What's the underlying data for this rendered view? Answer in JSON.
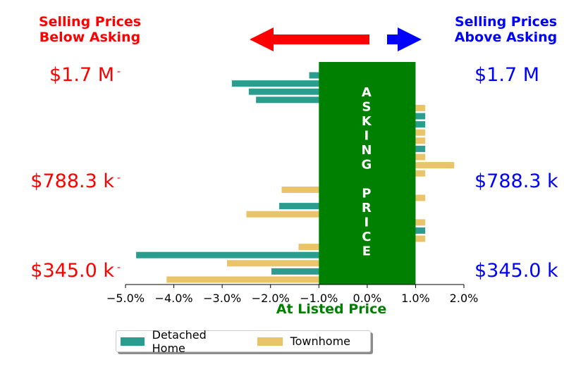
{
  "headers": {
    "below": "Selling Prices\nBelow Asking",
    "above": "Selling Prices\nAbove Asking"
  },
  "colors": {
    "below": "#ff0000",
    "above": "#0000ff",
    "asking_box": "#008000",
    "asking_text": "#ffffff",
    "detached": "#2a9d8f",
    "townhome": "#e9c46a"
  },
  "price_labels": {
    "left": [
      "$1.7 M",
      "$788.3 k",
      "$345.0 k"
    ],
    "right": [
      "$1.7 M",
      "$788.3 k",
      "$345.0 k"
    ],
    "tick_dash": "-"
  },
  "asking_label": [
    "A",
    "S",
    "K",
    "I",
    "N",
    "G",
    "",
    "P",
    "R",
    "I",
    "C",
    "E"
  ],
  "chart_data": {
    "type": "bar",
    "orientation": "horizontal",
    "xlabel": "At Listed Price",
    "xlim": [
      -5.0,
      2.0
    ],
    "xticks": [
      -5.0,
      -4.0,
      -3.0,
      -2.0,
      -1.0,
      0.0,
      1.0,
      2.0
    ],
    "xtick_labels": [
      "−5.0%",
      "−4.0%",
      "−3.0%",
      "−2.0%",
      "−1.0%",
      "0.0%",
      "1.0%",
      "2.0%"
    ],
    "asking_band": [
      -1.0,
      1.0
    ],
    "price_ticks": {
      "$1.7 M": 0,
      "$788.3 k": 13,
      "$345.0 k": 24
    },
    "legend": "bottom-center",
    "series": [
      {
        "name": "Detached Home",
        "points": [
          {
            "row": 0,
            "value": -1.2
          },
          {
            "row": 1,
            "value": -2.8
          },
          {
            "row": 2,
            "value": -2.45
          },
          {
            "row": 3,
            "value": -2.3
          },
          {
            "row": 5,
            "value": 1.2
          },
          {
            "row": 6,
            "value": 1.2
          },
          {
            "row": 9,
            "value": 1.2
          },
          {
            "row": 16,
            "value": -1.82
          },
          {
            "row": 19,
            "value": 1.2
          },
          {
            "row": 22,
            "value": -4.78
          },
          {
            "row": 24,
            "value": -1.98
          }
        ]
      },
      {
        "name": "Townhome",
        "points": [
          {
            "row": 4,
            "value": 1.2
          },
          {
            "row": 7,
            "value": 1.2
          },
          {
            "row": 8,
            "value": 1.2
          },
          {
            "row": 10,
            "value": 1.2
          },
          {
            "row": 11,
            "value": 1.8
          },
          {
            "row": 12,
            "value": 1.2
          },
          {
            "row": 14,
            "value": -1.77
          },
          {
            "row": 15,
            "value": 1.2
          },
          {
            "row": 17,
            "value": -2.5
          },
          {
            "row": 18,
            "value": 1.2
          },
          {
            "row": 20,
            "value": 1.2
          },
          {
            "row": 21,
            "value": -1.42
          },
          {
            "row": 23,
            "value": -2.9
          },
          {
            "row": 25,
            "value": -4.15
          }
        ]
      }
    ]
  }
}
